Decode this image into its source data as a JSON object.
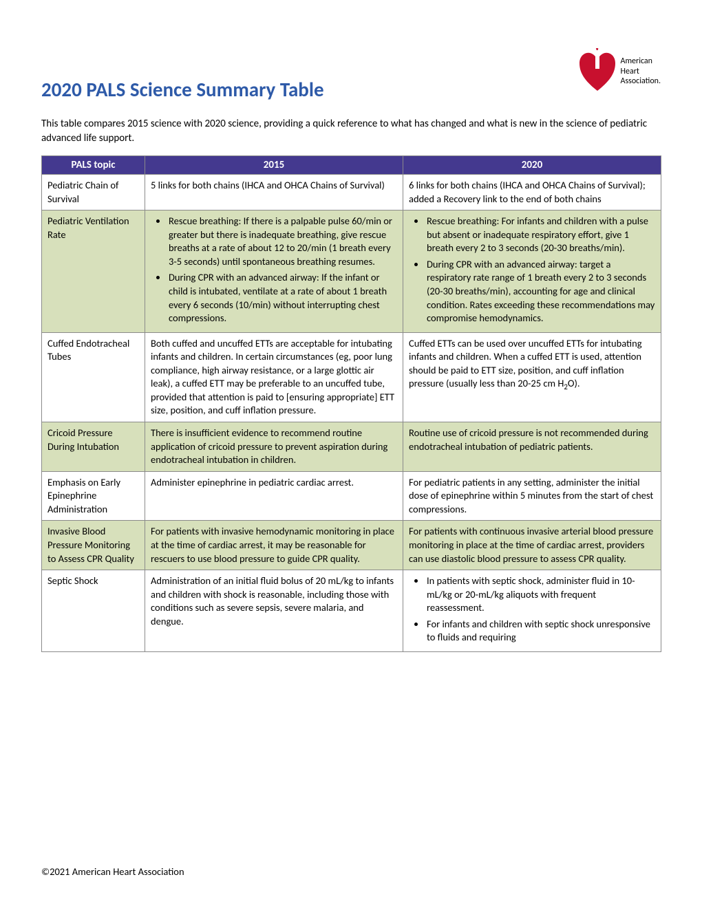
{
  "title": "2020 PALS Science Summary Table",
  "title_color": "#2e5aa8",
  "logo": {
    "line1": "American",
    "line2": "Heart",
    "line3": "Association.",
    "heart_color": "#c8102e"
  },
  "intro": "This table compares 2015 science with 2020 science, providing a quick reference to what has changed and what is new in the science of pediatric advanced life support.",
  "columns": {
    "topic": "PALS topic",
    "y2015": "2015",
    "y2020": "2020"
  },
  "header_bg": "#44398f",
  "alt_row_bg": "#d7e0bb",
  "border_color": "#8a8a8a",
  "rows": [
    {
      "topic": "Pediatric Chain of Survival",
      "c2015_text": "5 links for both chains (IHCA and OHCA Chains of Survival)",
      "c2020_text": "6 links for both chains (IHCA and OHCA Chains of Survival); added a Recovery link to the end of both chains"
    },
    {
      "topic": "Pediatric Ventilation Rate",
      "c2015_bullets": [
        "Rescue breathing: If there is a palpable pulse 60/min or greater but there is inadequate breathing, give rescue breaths at a rate of about 12 to 20/min (1 breath every 3-5 seconds) until spontaneous breathing resumes.",
        "During CPR with an advanced airway: If the infant or child is intubated, ventilate at a rate of about 1 breath every 6 seconds (10/min) without interrupting chest compressions."
      ],
      "c2020_bullets": [
        "Rescue breathing: For infants and children with a pulse but absent or inadequate respiratory effort, give 1 breath every 2 to 3 seconds (20-30 breaths/min).",
        "During CPR with an advanced airway: target a respiratory rate range of 1 breath every 2 to 3 seconds (20-30 breaths/min), accounting for age and clinical condition. Rates exceeding these recommendations may compromise hemodynamics."
      ]
    },
    {
      "topic": "Cuffed Endotracheal Tubes",
      "c2015_text": "Both cuffed and uncuffed ETTs are acceptable for intubating infants and children. In certain circumstances (eg, poor lung compliance, high airway resistance, or a large glottic air leak), a cuffed ETT may be preferable to an uncuffed tube, provided that attention is paid to [ensuring appropriate] ETT size, position, and cuff inflation pressure.",
      "c2020_html": "Cuffed ETTs can be used over uncuffed ETTs for intubating infants and children. When a cuffed ETT is used, attention should be paid to ETT size, position, and cuff inflation pressure (usually less than 20-25 cm H<span class=\"sub\">2</span>O)."
    },
    {
      "topic": "Cricoid Pressure During Intubation",
      "c2015_text": "There is insufficient evidence to recommend routine application of cricoid pressure to prevent aspiration during endotracheal intubation in children.",
      "c2020_text": "Routine use of cricoid pressure is not recommended during endotracheal intubation of pediatric patients."
    },
    {
      "topic": "Emphasis on Early Epinephrine Administration",
      "c2015_text": "Administer epinephrine in pediatric cardiac arrest.",
      "c2020_text": "For pediatric patients in any setting, administer the initial dose of epinephrine within 5 minutes from the start of chest compressions."
    },
    {
      "topic": "Invasive Blood Pressure Monitoring to Assess CPR Quality",
      "c2015_text": "For patients with invasive hemodynamic monitoring in place at the time of cardiac arrest, it may be reasonable for rescuers to use blood pressure to guide CPR quality.",
      "c2020_text": "For patients with continuous invasive arterial blood pressure monitoring in place at the time of cardiac arrest, providers can use diastolic blood pressure to assess CPR quality."
    },
    {
      "topic": "Septic Shock",
      "c2015_text": "Administration of an initial fluid bolus of 20 mL/kg to infants and children with shock is reasonable, including those with conditions such as severe sepsis, severe malaria, and dengue.",
      "c2020_bullets": [
        "In patients with septic shock, administer fluid in 10-mL/kg or 20-mL/kg aliquots with frequent reassessment.",
        "For infants and children with septic shock unresponsive to fluids and requiring"
      ]
    }
  ],
  "footer": "©2021 American Heart Association"
}
